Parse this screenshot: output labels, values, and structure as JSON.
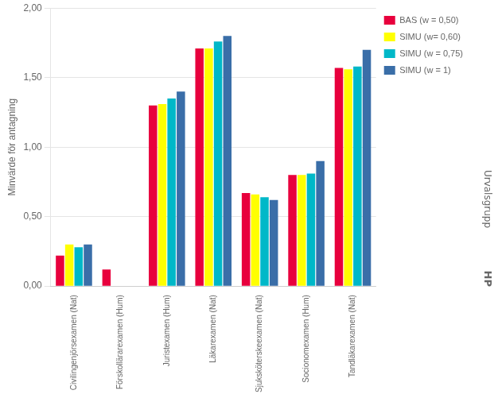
{
  "chart_data": {
    "type": "bar",
    "categories": [
      "Civilingenjörsexamen (Nat)",
      "Förskollärarexamen (Hum)",
      "Juristexamen (Hum)",
      "Läkarexamen (Nat)",
      "Sjuksköterskeexamen (Nat)",
      "Socionomexamen (Hum)",
      "Tandläkarexamen (Nat)"
    ],
    "series": [
      {
        "name": "BAS (w = 0,50)",
        "color": "#E8003D",
        "values": [
          0.22,
          0.12,
          1.3,
          1.71,
          0.67,
          0.8,
          1.57
        ]
      },
      {
        "name": "SIMU (w= 0,60)",
        "color": "#FFFF00",
        "values": [
          0.3,
          0.0,
          1.31,
          1.71,
          0.66,
          0.8,
          1.56
        ]
      },
      {
        "name": "SIMU (w = 0,75)",
        "color": "#00B8C8",
        "values": [
          0.28,
          0.0,
          1.35,
          1.76,
          0.64,
          0.81,
          1.58
        ]
      },
      {
        "name": "SIMU (w = 1)",
        "color": "#3A6EA8",
        "values": [
          0.3,
          0.0,
          1.4,
          1.8,
          0.62,
          0.9,
          1.7
        ]
      }
    ],
    "ylabel": "Minvärde för antagning",
    "annotations": [
      "Urvalsgrupp",
      "HP"
    ],
    "ylim": [
      0,
      2.0
    ],
    "yticks": [
      {
        "value": 0.0,
        "label": "0,00"
      },
      {
        "value": 0.5,
        "label": "0,50"
      },
      {
        "value": 1.0,
        "label": "1,00"
      },
      {
        "value": 1.5,
        "label": "1,50"
      },
      {
        "value": 2.0,
        "label": "2,00"
      }
    ],
    "grid": true,
    "legend": "right"
  }
}
